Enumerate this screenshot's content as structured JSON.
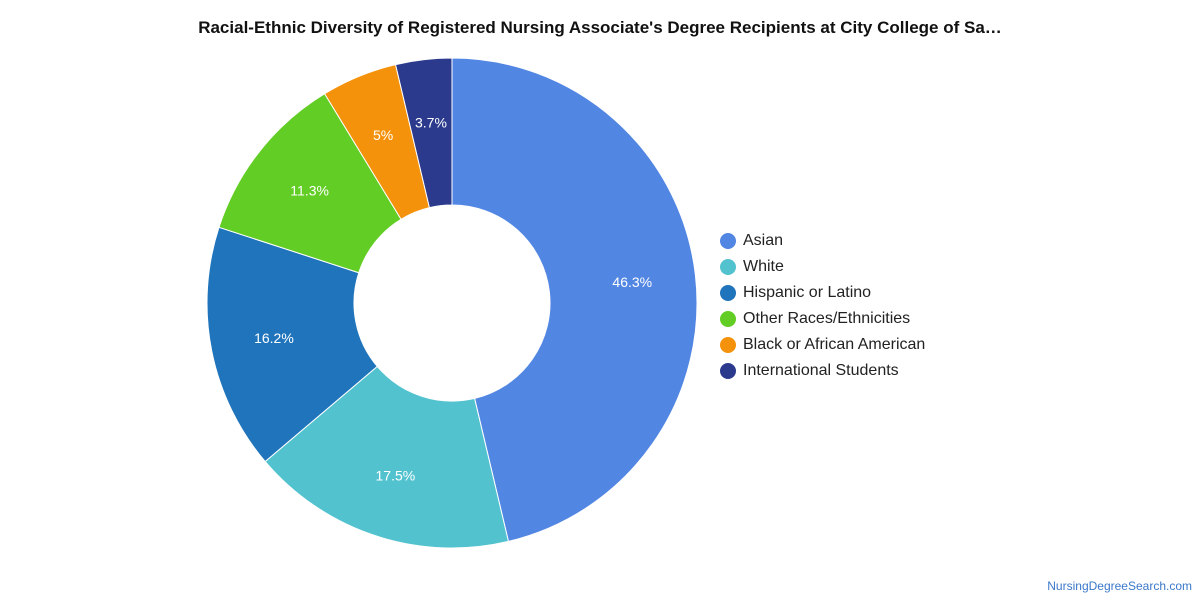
{
  "chart_data": {
    "type": "pie",
    "title": "Racial-Ethnic Diversity of Registered Nursing Associate's Degree Recipients at City College of Sa…",
    "categories": [
      "Asian",
      "White",
      "Hispanic or Latino",
      "Other Races/Ethnicities",
      "Black or African American",
      "International Students"
    ],
    "values": [
      46.3,
      17.5,
      16.2,
      11.3,
      5.0,
      3.7
    ],
    "labels": [
      "46.3%",
      "17.5%",
      "16.2%",
      "11.3%",
      "5%",
      "3.7%"
    ],
    "colors": [
      "#5286e3",
      "#52c2cf",
      "#1f74bb",
      "#62cd25",
      "#f5920b",
      "#2b3a8d"
    ],
    "donut": true,
    "legend": "right"
  },
  "watermark": "NursingDegreeSearch.com"
}
